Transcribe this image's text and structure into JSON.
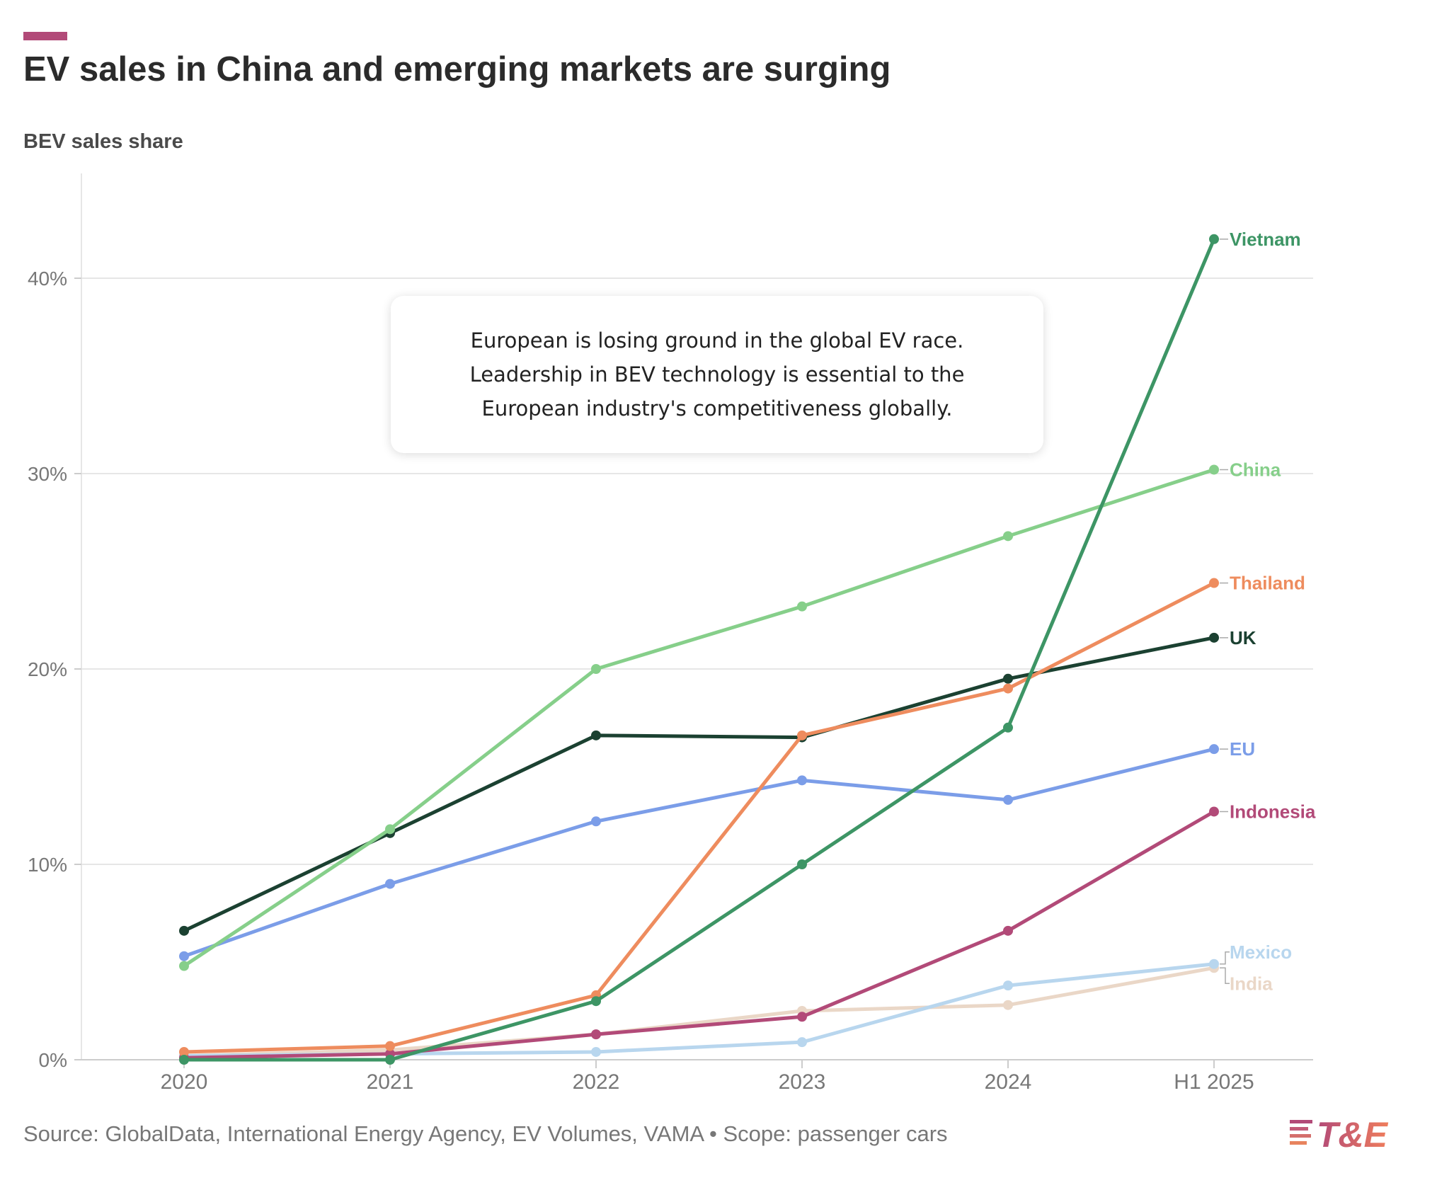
{
  "header": {
    "title": "EV sales in China and emerging markets are surging",
    "subtitle": "BEV sales share"
  },
  "annotation": {
    "text": "European is losing ground in the global EV race. Leadership in BEV technology is essential to the European industry's competitiveness globally."
  },
  "footer": {
    "source": "Source: GlobalData, International Energy Agency, EV Volumes, VAMA • Scope: passenger cars"
  },
  "logo": {
    "text": "T&E"
  },
  "colors": {
    "accent": "#b24a78",
    "grid": "#e6e6e6",
    "axis_text": "#777777"
  },
  "chart_data": {
    "type": "line",
    "title": "EV sales in China and emerging markets are surging",
    "ylabel": "BEV sales share",
    "categories": [
      "2020",
      "2021",
      "2022",
      "2023",
      "2024",
      "H1 2025"
    ],
    "y_ticks": [
      0,
      10,
      20,
      30,
      40
    ],
    "y_tick_labels": [
      "0%",
      "10%",
      "20%",
      "30%",
      "40%"
    ],
    "ylim": [
      0,
      45
    ],
    "grid": true,
    "legend": "direct labels at line ends",
    "series": [
      {
        "name": "Vietnam",
        "color": "#3d9565",
        "values": [
          0,
          0,
          3.0,
          10.0,
          17.0,
          42.0
        ]
      },
      {
        "name": "China",
        "color": "#86cf8a",
        "values": [
          4.8,
          11.8,
          20.0,
          23.2,
          26.8,
          30.2
        ]
      },
      {
        "name": "Thailand",
        "color": "#ee8c5e",
        "values": [
          0.4,
          0.7,
          3.3,
          16.6,
          19.0,
          24.4
        ]
      },
      {
        "name": "UK",
        "color": "#1b4131",
        "values": [
          6.6,
          11.6,
          16.6,
          16.5,
          19.5,
          21.6
        ]
      },
      {
        "name": "EU",
        "color": "#7b9de8",
        "values": [
          5.3,
          9.0,
          12.2,
          14.3,
          13.3,
          15.9
        ]
      },
      {
        "name": "Indonesia",
        "color": "#b24a78",
        "values": [
          0.1,
          0.3,
          1.3,
          2.2,
          6.6,
          12.7
        ]
      },
      {
        "name": "Mexico",
        "color": "#b8d6ee",
        "values": [
          0.2,
          0.3,
          0.4,
          0.9,
          3.8,
          4.9
        ]
      },
      {
        "name": "India",
        "color": "#ead7c7",
        "values": [
          0.2,
          0.5,
          1.3,
          2.5,
          2.8,
          4.7
        ]
      }
    ]
  }
}
